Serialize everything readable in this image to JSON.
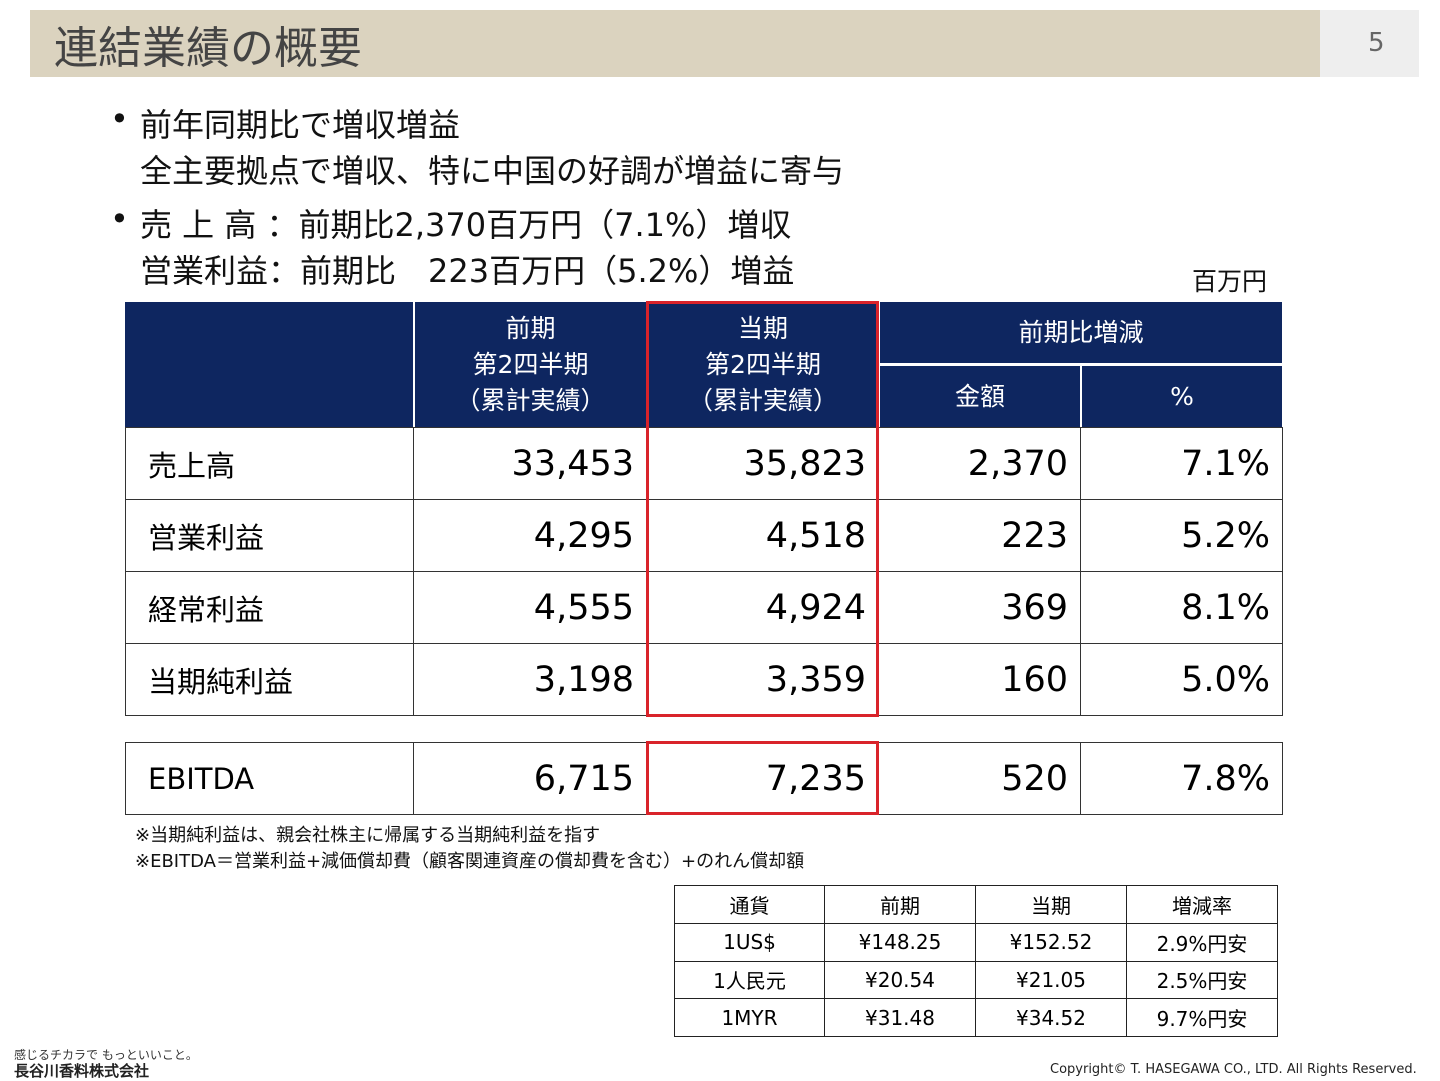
{
  "header": {
    "title": "連結業績の概要",
    "page": "5"
  },
  "bullets": [
    {
      "lines": [
        "前年同期比で増収増益",
        "全主要拠点で増収、特に中国の好調が増益に寄与"
      ]
    },
    {
      "lines": [
        "売 上 高 ：前期比2,370百万円（7.1%）増収",
        "営業利益：前期比　223百万円（5.2%）増益"
      ]
    }
  ],
  "unit": "百万円",
  "table": {
    "columns": [
      {
        "lines": [
          "前期",
          "第2四半期",
          "（累計実績）"
        ]
      },
      {
        "lines": [
          "当期",
          "第2四半期",
          "（累計実績）"
        ]
      }
    ],
    "group": "前期比増減",
    "subcolumns": [
      "金額",
      "%"
    ],
    "rows": [
      [
        "売上高",
        "33,453",
        "35,823",
        "2,370",
        "7.1%"
      ],
      [
        "営業利益",
        "4,295",
        "4,518",
        "223",
        "5.2%"
      ],
      [
        "経常利益",
        "4,555",
        "4,924",
        "369",
        "8.1%"
      ],
      [
        "当期純利益",
        "3,198",
        "3,359",
        "160",
        "5.0%"
      ]
    ],
    "ebitda": [
      "EBITDA",
      "6,715",
      "7,235",
      "520",
      "7.8%"
    ]
  },
  "notes": [
    "※当期純利益は、親会社株主に帰属する当期純利益を指す",
    "※EBITDA＝営業利益+減価償却費（顧客関連資産の償却費を含む）+のれん償却額"
  ],
  "fx": {
    "headers": [
      "通貨",
      "前期",
      "当期",
      "増減率"
    ],
    "rows": [
      [
        "1US$",
        "¥148.25",
        "¥152.52",
        "2.9%円安"
      ],
      [
        "1人民元",
        "¥20.54",
        "¥21.05",
        "2.5%円安"
      ],
      [
        "1MYR",
        "¥31.48",
        "¥34.52",
        "9.7%円安"
      ]
    ]
  },
  "footer": {
    "tagline": "感じるチカラで もっといいこと。",
    "company": "長谷川香料株式会社",
    "copyright": "Copyright© T. HASEGAWA CO., LTD. All Rights Reserved."
  }
}
